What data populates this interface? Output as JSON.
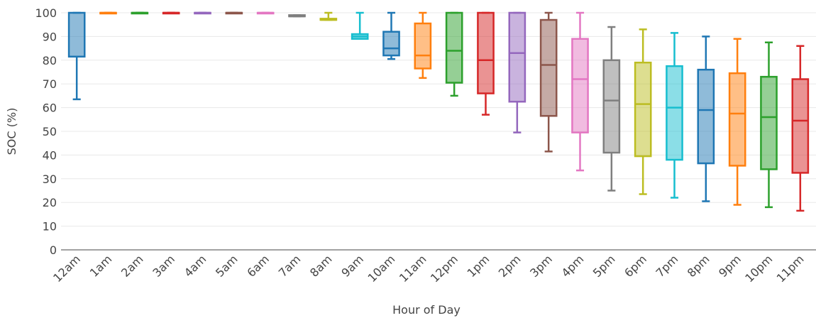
{
  "chart_data": {
    "type": "box",
    "title": "",
    "xlabel": "Hour of Day",
    "ylabel": "SOC (%)",
    "ylim": [
      0,
      100
    ],
    "yticks": [
      0,
      10,
      20,
      30,
      40,
      50,
      60,
      70,
      80,
      90,
      100
    ],
    "grid": true,
    "legend": "none",
    "categories": [
      "12am",
      "1am",
      "2am",
      "3am",
      "4am",
      "5am",
      "6am",
      "7am",
      "8am",
      "9am",
      "10am",
      "11am",
      "12pm",
      "1pm",
      "2pm",
      "3pm",
      "4pm",
      "5pm",
      "6pm",
      "7pm",
      "8pm",
      "9pm",
      "10pm",
      "11pm"
    ],
    "colors": [
      "#1f77b4",
      "#ff7f0e",
      "#2ca02c",
      "#d62728",
      "#9467bd",
      "#8c564b",
      "#e377c2",
      "#7f7f7f",
      "#bcbd22",
      "#17becf"
    ],
    "boxes": [
      {
        "category": "12am",
        "min": 63.5,
        "q1": 81.5,
        "median": 81.5,
        "q3": 100,
        "max": 100
      },
      {
        "category": "1am",
        "min": 100,
        "q1": 100,
        "median": 100,
        "q3": 100,
        "max": 100
      },
      {
        "category": "2am",
        "min": 100,
        "q1": 100,
        "median": 100,
        "q3": 100,
        "max": 100
      },
      {
        "category": "3am",
        "min": 100,
        "q1": 100,
        "median": 100,
        "q3": 100,
        "max": 100
      },
      {
        "category": "4am",
        "min": 100,
        "q1": 100,
        "median": 100,
        "q3": 100,
        "max": 100
      },
      {
        "category": "5am",
        "min": 100,
        "q1": 100,
        "median": 100,
        "q3": 100,
        "max": 100
      },
      {
        "category": "6am",
        "min": 100,
        "q1": 100,
        "median": 100,
        "q3": 100,
        "max": 100
      },
      {
        "category": "7am",
        "min": 98.5,
        "q1": 98.5,
        "median": 98.5,
        "q3": 99,
        "max": 99
      },
      {
        "category": "8am",
        "min": 97,
        "q1": 97,
        "median": 97,
        "q3": 97.5,
        "max": 100
      },
      {
        "category": "9am",
        "min": 89,
        "q1": 89,
        "median": 90,
        "q3": 91,
        "max": 100
      },
      {
        "category": "10am",
        "min": 80.5,
        "q1": 82,
        "median": 85,
        "q3": 92,
        "max": 100
      },
      {
        "category": "11am",
        "min": 72.5,
        "q1": 76.5,
        "median": 82,
        "q3": 95.5,
        "max": 100
      },
      {
        "category": "12pm",
        "min": 65,
        "q1": 70.5,
        "median": 84,
        "q3": 100,
        "max": 100
      },
      {
        "category": "1pm",
        "min": 57,
        "q1": 66,
        "median": 80,
        "q3": 100,
        "max": 100
      },
      {
        "category": "2pm",
        "min": 49.5,
        "q1": 62.5,
        "median": 83,
        "q3": 100,
        "max": 100
      },
      {
        "category": "3pm",
        "min": 41.5,
        "q1": 56.5,
        "median": 78,
        "q3": 97,
        "max": 100
      },
      {
        "category": "4pm",
        "min": 33.5,
        "q1": 49.5,
        "median": 72,
        "q3": 89,
        "max": 100
      },
      {
        "category": "5pm",
        "min": 25,
        "q1": 41,
        "median": 63,
        "q3": 80,
        "max": 94
      },
      {
        "category": "6pm",
        "min": 23.5,
        "q1": 39.5,
        "median": 61.5,
        "q3": 79,
        "max": 93
      },
      {
        "category": "7pm",
        "min": 22,
        "q1": 38,
        "median": 60,
        "q3": 77.5,
        "max": 91.5
      },
      {
        "category": "8pm",
        "min": 20.5,
        "q1": 36.5,
        "median": 59,
        "q3": 76,
        "max": 90
      },
      {
        "category": "9pm",
        "min": 19,
        "q1": 35.5,
        "median": 57.5,
        "q3": 74.5,
        "max": 89
      },
      {
        "category": "10pm",
        "min": 18,
        "q1": 34,
        "median": 56,
        "q3": 73,
        "max": 87.5
      },
      {
        "category": "11pm",
        "min": 16.5,
        "q1": 32.5,
        "median": 54.5,
        "q3": 72,
        "max": 86
      }
    ]
  }
}
